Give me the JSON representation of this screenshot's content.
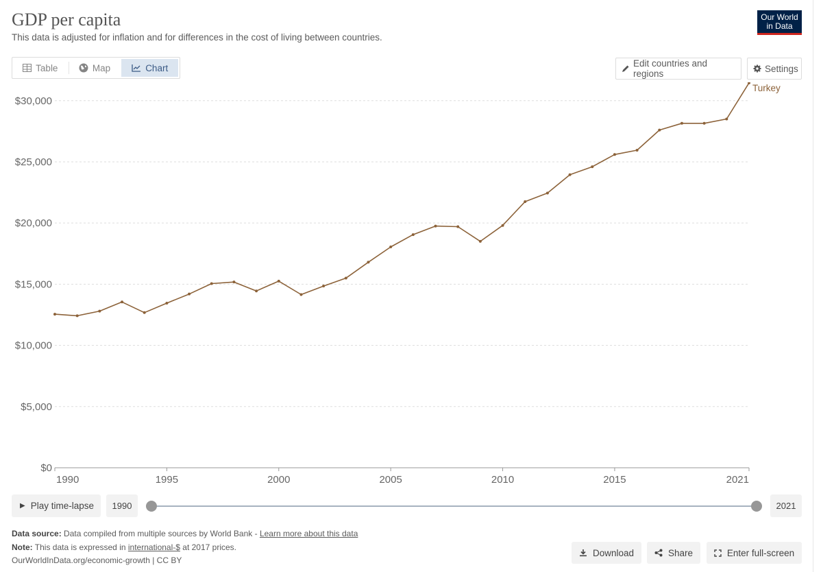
{
  "header": {
    "title": "GDP per capita",
    "subtitle": "This data is adjusted for inflation and for differences in the cost of living between countries.",
    "logo_line1": "Our World",
    "logo_line2": "in Data"
  },
  "tabs": [
    {
      "label": "Table",
      "icon": "table-icon"
    },
    {
      "label": "Map",
      "icon": "globe-icon"
    },
    {
      "label": "Chart",
      "icon": "line-chart-icon",
      "active": true
    }
  ],
  "controls": {
    "edit_label": "Edit countries and regions",
    "settings_label": "Settings"
  },
  "colors": {
    "series": "#8c6239",
    "accent_active_tab": "#dbe5f0",
    "logo_bg": "#002147",
    "logo_underline": "#ce261e"
  },
  "chart_data": {
    "type": "line",
    "ylim": [
      0,
      31500
    ],
    "xlim": [
      1990,
      2021
    ],
    "y_ticks": [
      0,
      5000,
      10000,
      15000,
      20000,
      25000,
      30000
    ],
    "y_tick_labels": [
      "$0",
      "$5,000",
      "$10,000",
      "$15,000",
      "$20,000",
      "$25,000",
      "$30,000"
    ],
    "x_ticks": [
      1990,
      1995,
      2000,
      2005,
      2010,
      2015,
      2021
    ],
    "x_tick_labels": [
      "1990",
      "1995",
      "2000",
      "2005",
      "2010",
      "2015",
      "2021"
    ],
    "grid": "horizontal dashed",
    "series": [
      {
        "name": "Turkey",
        "x": [
          1990,
          1991,
          1992,
          1993,
          1994,
          1995,
          1996,
          1997,
          1998,
          1999,
          2000,
          2001,
          2002,
          2003,
          2004,
          2005,
          2006,
          2007,
          2008,
          2009,
          2010,
          2011,
          2012,
          2013,
          2014,
          2015,
          2016,
          2017,
          2018,
          2019,
          2020,
          2021
        ],
        "values": [
          12550,
          12420,
          12800,
          13550,
          12680,
          13450,
          14200,
          15050,
          15180,
          14450,
          15250,
          14150,
          14850,
          15500,
          16800,
          18050,
          19050,
          19750,
          19700,
          18500,
          19800,
          21750,
          22450,
          23950,
          24600,
          25600,
          25950,
          27600,
          28150,
          28150,
          28500,
          31450
        ]
      }
    ]
  },
  "timeline": {
    "play_label": "Play time-lapse",
    "start_year": "1990",
    "end_year": "2021"
  },
  "footer": {
    "source_label": "Data source:",
    "source_text": "Data compiled from multiple sources by World Bank - ",
    "source_link": "Learn more about this data",
    "note_label": "Note:",
    "note_text_pre": "This data is expressed in ",
    "note_link": "international-$",
    "note_text_post": " at 2017 prices.",
    "url_text": "OurWorldInData.org/economic-growth | CC BY"
  },
  "actions": {
    "download_label": "Download",
    "share_label": "Share",
    "fullscreen_label": "Enter full-screen"
  }
}
